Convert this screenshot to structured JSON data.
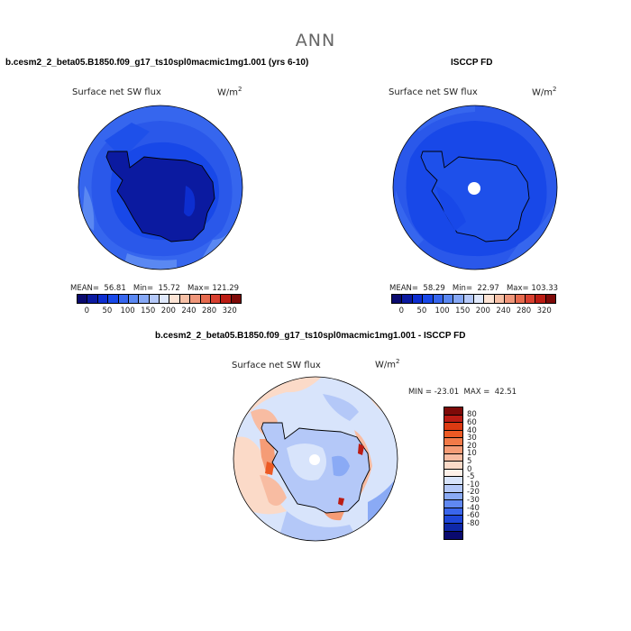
{
  "season": "ANN",
  "panels": [
    {
      "title": "b.cesm2_2_beta05.B1850.f09_g17_ts10spl0macmic1mg1.001 (yrs 6-10)",
      "variable": "Surface net SW flux",
      "units_base": "W/m",
      "units_exp": "2",
      "stats": {
        "mean_label": "MEAN=",
        "mean": "56.81",
        "min_label": "Min=",
        "min": "15.72",
        "max_label": "Max=",
        "max": "121.29"
      }
    },
    {
      "title": "ISCCP FD",
      "variable": "Surface net SW flux",
      "units_base": "W/m",
      "units_exp": "2",
      "stats": {
        "mean_label": "MEAN=",
        "mean": "58.29",
        "min_label": "Min=",
        "min": "22.97",
        "max_label": "Max=",
        "max": "103.33"
      }
    },
    {
      "title": "b.cesm2_2_beta05.B1850.f09_g17_ts10spl0macmic1mg1.001 - ISCCP FD",
      "variable": "Surface net SW flux",
      "units_base": "W/m",
      "units_exp": "2",
      "stats": {
        "min_label": "MIN =",
        "min": "-23.01",
        "max_label": "MAX =",
        "max": "42.51"
      }
    }
  ],
  "colorbar_abs": {
    "colors": [
      "#0a0a6e",
      "#0b1aa0",
      "#0d2ed0",
      "#1848e8",
      "#3666ee",
      "#5a88f2",
      "#86a8f5",
      "#b4c8f8",
      "#dfe8fb",
      "#fbe3d4",
      "#f6c0a6",
      "#ef967a",
      "#e66a4e",
      "#d84030",
      "#bb1c14",
      "#7e0a08"
    ],
    "labels": [
      "0",
      "50",
      "100",
      "150",
      "200",
      "240",
      "280",
      "320"
    ]
  },
  "colorbar_diff": {
    "colors": [
      "#7e0a08",
      "#bb1c14",
      "#dc3a12",
      "#ec5a24",
      "#f27a48",
      "#f59c76",
      "#f8bca2",
      "#fbdac8",
      "#fdf0e8",
      "#d8e4fb",
      "#b4c8f8",
      "#8aaaf5",
      "#6088f1",
      "#3a66ec",
      "#1e46d8",
      "#0e28a8",
      "#0a0a6e"
    ],
    "labels": [
      "80",
      "60",
      "40",
      "30",
      "20",
      "10",
      "5",
      "0",
      "-5",
      "-10",
      "-20",
      "-30",
      "-40",
      "-60",
      "-80"
    ]
  }
}
